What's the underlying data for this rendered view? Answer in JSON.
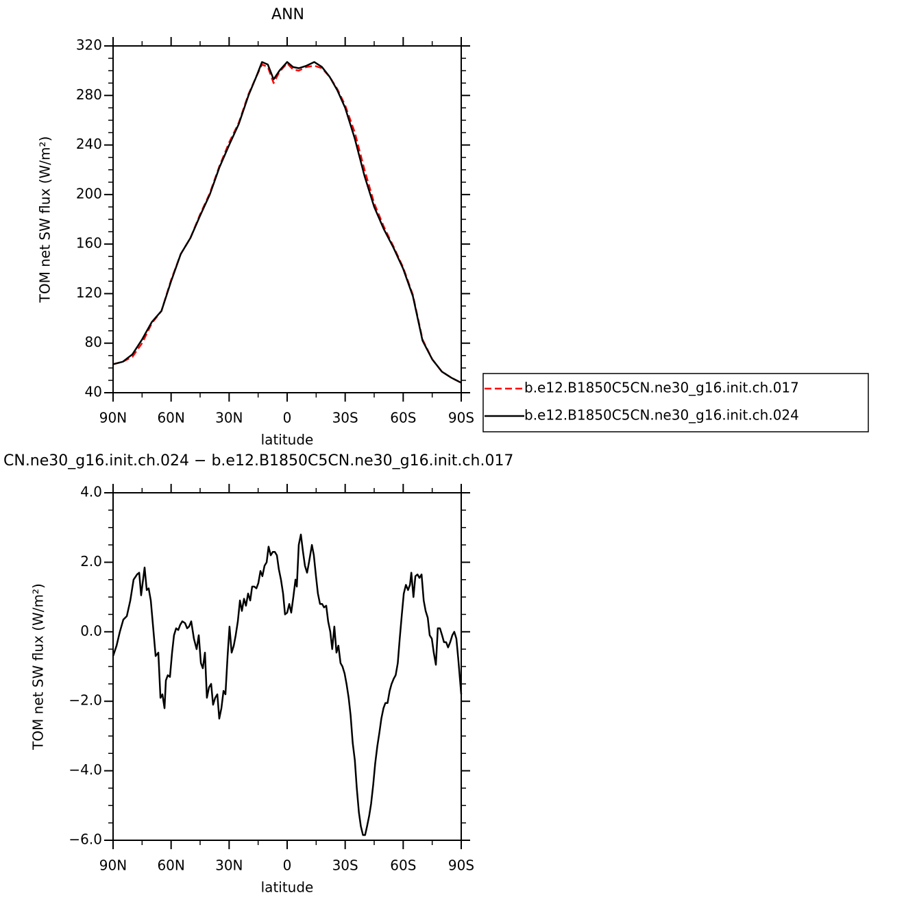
{
  "chart_data": [
    {
      "type": "line",
      "title": "ANN",
      "xlabel": "latitude",
      "ylabel": "TOM net SW flux (W/m²)",
      "xlim": [
        90,
        -90
      ],
      "ylim": [
        40,
        320
      ],
      "xticks": [
        {
          "value": 90,
          "label": "90N"
        },
        {
          "value": 60,
          "label": "60N"
        },
        {
          "value": 30,
          "label": "30N"
        },
        0,
        {
          "value": -30,
          "label": "30S"
        },
        {
          "value": -60,
          "label": "60S"
        },
        {
          "value": -90,
          "label": "90S"
        }
      ],
      "yticks": [
        40,
        80,
        120,
        160,
        200,
        240,
        280,
        320
      ],
      "xminorticks": [
        75,
        45,
        15,
        -15,
        -45,
        -75
      ],
      "yminorticks": [
        50,
        60,
        70,
        90,
        100,
        110,
        130,
        140,
        150,
        170,
        180,
        190,
        210,
        220,
        230,
        250,
        260,
        270,
        290,
        300,
        310
      ],
      "legend": "right",
      "x": [
        90,
        85,
        80,
        75,
        70,
        65,
        60,
        55,
        50,
        45,
        40,
        35,
        30,
        25,
        20,
        16,
        13,
        10,
        7,
        4,
        0,
        -3,
        -6,
        -10,
        -14,
        -18,
        -22,
        -26,
        -30,
        -35,
        -40,
        -45,
        -50,
        -55,
        -60,
        -65,
        -70,
        -75,
        -80,
        -85,
        -90
      ],
      "series": [
        {
          "name": "b.e12.B1850C5CN.ne30_g16.init.ch.017",
          "color": "#ff0000",
          "dash": true,
          "values": [
            63,
            65,
            69,
            80,
            96,
            106,
            131,
            152,
            165,
            184,
            201,
            223,
            242,
            258,
            281,
            295,
            305,
            303,
            290,
            299,
            306,
            301,
            300,
            303,
            304,
            302,
            295,
            285,
            272,
            250,
            220,
            193,
            174,
            158,
            141,
            119,
            83,
            67,
            57,
            52,
            48
          ]
        },
        {
          "name": "b.e12.B1850C5CN.ne30_g16.init.ch.024",
          "color": "#000000",
          "dash": false,
          "values": [
            63,
            65,
            71,
            83,
            97,
            106,
            130,
            152,
            165,
            183,
            200,
            222,
            240,
            257,
            280,
            295,
            307,
            305,
            293,
            300,
            307,
            303,
            302,
            304,
            307,
            303,
            295,
            284,
            270,
            245,
            215,
            190,
            172,
            157,
            140,
            118,
            82,
            67,
            57,
            52,
            48
          ]
        }
      ]
    },
    {
      "type": "line",
      "title": "CN.ne30_g16.init.ch.024 − b.e12.B1850C5CN.ne30_g16.init.ch.017",
      "xlabel": "latitude",
      "ylabel": "TOM net SW flux (W/m²)",
      "xlim": [
        90,
        -90
      ],
      "ylim": [
        -6,
        4
      ],
      "xticks": [
        {
          "value": 90,
          "label": "90N"
        },
        {
          "value": 60,
          "label": "60N"
        },
        {
          "value": 30,
          "label": "30N"
        },
        0,
        {
          "value": -30,
          "label": "30S"
        },
        {
          "value": -60,
          "label": "60S"
        },
        {
          "value": -90,
          "label": "90S"
        }
      ],
      "yticks": [
        {
          "value": -6,
          "label": "−6.0"
        },
        {
          "value": -4,
          "label": "−4.0"
        },
        {
          "value": -2,
          "label": "−2.0"
        },
        {
          "value": 0,
          "label": "0.0"
        },
        {
          "value": 2,
          "label": "2.0"
        },
        {
          "value": 4,
          "label": "4.0"
        }
      ],
      "xminorticks": [
        75,
        45,
        15,
        -15,
        -45,
        -75
      ],
      "yminorticks": [
        -5.5,
        -5,
        -4.5,
        -3.5,
        -3,
        -2.5,
        -1.5,
        -1,
        -0.5,
        0.5,
        1,
        1.5,
        2.5,
        3,
        3.5
      ],
      "x": [
        90,
        88.2,
        86.5,
        84.7,
        82.9,
        81.1,
        79.4,
        77.6,
        76.5,
        75.5,
        73.7,
        72.6,
        71.6,
        70.5,
        69.4,
        68.0,
        66.6,
        65.5,
        64.5,
        63.4,
        62.7,
        61.7,
        60.6,
        59.5,
        58.5,
        57.4,
        56.3,
        55.3,
        54.2,
        52.8,
        51.7,
        50.7,
        49.6,
        48.2,
        46.8,
        45.7,
        44.6,
        43.6,
        42.5,
        41.5,
        40.4,
        39.3,
        38.3,
        37.2,
        36.1,
        35.1,
        34.0,
        32.9,
        31.9,
        30.8,
        29.8,
        28.7,
        27.6,
        26.6,
        25.5,
        24.4,
        23.4,
        22.3,
        21.3,
        20.2,
        19.1,
        18.1,
        17.0,
        15.9,
        14.9,
        13.8,
        12.8,
        11.7,
        10.6,
        9.6,
        8.5,
        7.4,
        6.4,
        5.3,
        4.3,
        3.2,
        2.1,
        1.1,
        0,
        -1.1,
        -2.1,
        -3.2,
        -4.3,
        -5.0,
        -6.0,
        -7.1,
        -8.2,
        -9.2,
        -10.3,
        -11.3,
        -12.8,
        -13.8,
        -14.9,
        -15.9,
        -17.0,
        -18.1,
        -19.1,
        -20.2,
        -21.2,
        -22.3,
        -23.3,
        -24.4,
        -25.5,
        -26.5,
        -27.6,
        -28.6,
        -29.7,
        -30.7,
        -31.8,
        -32.8,
        -33.9,
        -35.0,
        -36.0,
        -37.1,
        -38.1,
        -39.2,
        -40.3,
        -41.3,
        -42.4,
        -43.4,
        -44.5,
        -45.5,
        -46.6,
        -47.7,
        -48.7,
        -49.8,
        -50.8,
        -51.9,
        -53.0,
        -54.0,
        -55.1,
        -56.1,
        -57.2,
        -58.2,
        -59.3,
        -60.3,
        -61.4,
        -62.5,
        -63.5,
        -64.2,
        -65.3,
        -66.3,
        -67.4,
        -68.4,
        -69.5,
        -70.6,
        -71.6,
        -72.7,
        -73.7,
        -74.8,
        -75.8,
        -76.9,
        -77.9,
        -79.0,
        -80.1,
        -81.1,
        -82.2,
        -83.2,
        -84.3,
        -85.4,
        -86.4,
        -87.5,
        -88.5,
        -90
      ],
      "series": [
        {
          "color": "#000000",
          "dash": false,
          "values": [
            -0.7,
            -0.4,
            0.0,
            0.35,
            0.45,
            0.9,
            1.5,
            1.65,
            1.7,
            1.05,
            1.85,
            1.2,
            1.25,
            0.9,
            0.2,
            -0.7,
            -0.6,
            -1.9,
            -1.8,
            -2.2,
            -1.4,
            -1.25,
            -1.3,
            -0.6,
            -0.1,
            0.1,
            0.05,
            0.2,
            0.3,
            0.25,
            0.1,
            0.15,
            0.3,
            -0.2,
            -0.5,
            -0.1,
            -0.9,
            -1.05,
            -0.6,
            -1.9,
            -1.6,
            -1.5,
            -2.1,
            -1.9,
            -1.8,
            -2.5,
            -2.2,
            -1.7,
            -1.8,
            -0.7,
            0.15,
            -0.6,
            -0.4,
            -0.1,
            0.3,
            0.9,
            0.6,
            0.95,
            0.75,
            1.1,
            0.9,
            1.3,
            1.3,
            1.25,
            1.4,
            1.75,
            1.6,
            1.9,
            2.0,
            2.45,
            2.2,
            2.3,
            2.3,
            2.2,
            1.8,
            1.5,
            1.1,
            0.5,
            0.55,
            0.8,
            0.55,
            1.0,
            1.5,
            1.3,
            2.5,
            2.8,
            2.3,
            1.9,
            1.7,
            2.0,
            2.5,
            2.2,
            1.6,
            1.1,
            0.8,
            0.8,
            0.7,
            0.75,
            0.3,
            0.0,
            -0.5,
            0.15,
            -0.6,
            -0.4,
            -0.9,
            -1.0,
            -1.2,
            -1.5,
            -1.9,
            -2.4,
            -3.2,
            -3.7,
            -4.5,
            -5.2,
            -5.6,
            -5.85,
            -5.85,
            -5.6,
            -5.3,
            -4.95,
            -4.4,
            -3.8,
            -3.3,
            -2.9,
            -2.5,
            -2.2,
            -2.05,
            -2.05,
            -1.7,
            -1.5,
            -1.35,
            -1.25,
            -0.9,
            -0.2,
            0.5,
            1.1,
            1.35,
            1.2,
            1.35,
            1.7,
            1.0,
            1.6,
            1.65,
            1.55,
            1.65,
            0.9,
            0.6,
            0.4,
            -0.1,
            -0.2,
            -0.6,
            -0.95,
            0.1,
            0.1,
            -0.1,
            -0.3,
            -0.3,
            -0.45,
            -0.3,
            -0.1,
            0.0,
            -0.2,
            -0.8,
            -1.8
          ]
        }
      ]
    }
  ]
}
